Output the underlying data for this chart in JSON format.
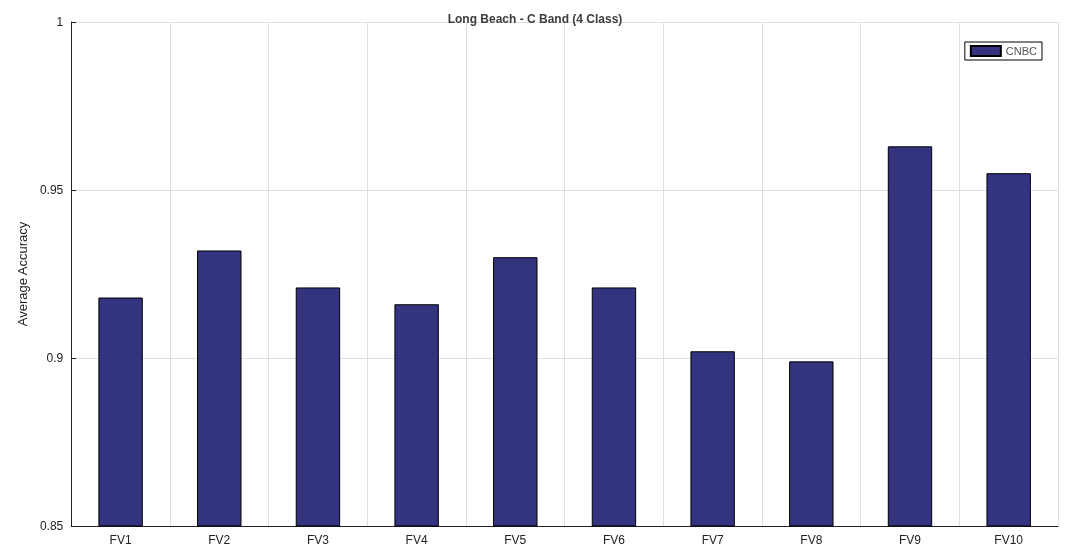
{
  "chart_data": {
    "type": "bar",
    "title": "Long Beach - C Band (4 Class)",
    "ylabel": "Average Accuracy",
    "categories": [
      "FV1",
      "FV2",
      "FV3",
      "FV4",
      "FV5",
      "FV6",
      "FV7",
      "FV8",
      "FV9",
      "FV10"
    ],
    "series": [
      {
        "name": "CNBC",
        "color": "#333380",
        "values": [
          0.918,
          0.932,
          0.921,
          0.916,
          0.93,
          0.921,
          0.902,
          0.899,
          0.963,
          0.955
        ]
      }
    ],
    "ylim": [
      0.85,
      1
    ],
    "yticks": [
      0.85,
      0.9,
      0.95,
      1
    ],
    "grid": true,
    "legend": "top right"
  }
}
